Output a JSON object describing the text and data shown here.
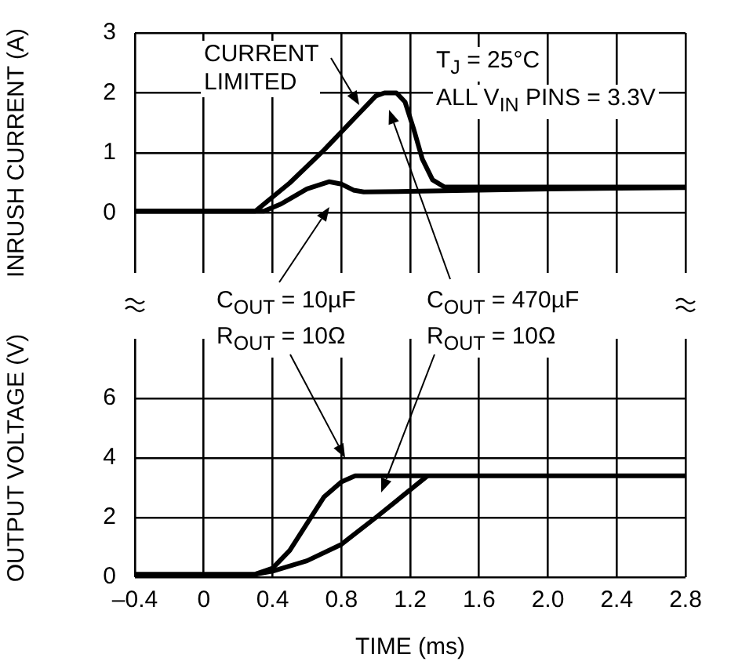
{
  "chart_data": [
    {
      "type": "line",
      "ylabel": "INRUSH CURRENT (A)",
      "xlim": [
        -0.4,
        2.8
      ],
      "ylim": [
        -1,
        3
      ],
      "yticks": [
        0,
        1,
        2,
        3
      ],
      "xticks": [
        -0.4,
        0,
        0.4,
        0.8,
        1.2,
        1.6,
        2,
        2.4,
        2.8
      ],
      "tick_labels": "y",
      "grid": true,
      "legend": false,
      "annotations": [
        "CURRENT LIMITED",
        "T$_{J}$ = 25°C",
        "ALL V$_{IN}$ PINS = 3.3V",
        "C$_{OUT}$ = 10µF",
        "R$_{OUT}$ = 10Ω",
        "C$_{OUT}$ = 470µF",
        "R$_{OUT}$ = 10Ω"
      ],
      "series": [
        {
          "color": "#000000",
          "x": [
            -0.4,
            0.3,
            0.5,
            0.7,
            0.9,
            1.0,
            1.05,
            1.12,
            1.17,
            1.22,
            1.27,
            1.33,
            1.4,
            2.8
          ],
          "values": [
            0.03,
            0.03,
            0.5,
            1.05,
            1.65,
            1.95,
            2.0,
            2.0,
            1.85,
            1.4,
            0.9,
            0.55,
            0.43,
            0.43
          ]
        },
        {
          "color": "#000000",
          "x": [
            -0.4,
            0.35,
            0.45,
            0.6,
            0.73,
            0.8,
            0.87,
            0.93,
            1.2,
            2.0,
            2.8
          ],
          "values": [
            0.03,
            0.03,
            0.15,
            0.4,
            0.52,
            0.48,
            0.38,
            0.35,
            0.36,
            0.4,
            0.42
          ]
        }
      ]
    },
    {
      "type": "line",
      "xlabel": "TIME (ms)",
      "ylabel": "OUTPUT VOLTAGE (V)",
      "xlim": [
        -0.4,
        2.8
      ],
      "ylim": [
        0,
        8
      ],
      "yticks": [
        0,
        2,
        4,
        6
      ],
      "xticks": [
        {
          "value": -0.4,
          "label": "–0.4"
        },
        0,
        0.4,
        0.8,
        1.2,
        1.6,
        {
          "value": 2,
          "label": "2.0"
        },
        2.4,
        2.8
      ],
      "grid": true,
      "legend": false,
      "series": [
        {
          "color": "#000000",
          "x": [
            -0.4,
            0.3,
            0.4,
            0.5,
            0.6,
            0.7,
            0.8,
            0.88,
            2.8
          ],
          "values": [
            0.1,
            0.1,
            0.3,
            0.9,
            1.8,
            2.7,
            3.2,
            3.4,
            3.4
          ]
        },
        {
          "color": "#000000",
          "x": [
            0.3,
            0.4,
            0.6,
            0.8,
            1.0,
            1.15,
            1.3
          ],
          "values": [
            0.1,
            0.2,
            0.55,
            1.1,
            2.0,
            2.7,
            3.4
          ]
        }
      ]
    }
  ]
}
